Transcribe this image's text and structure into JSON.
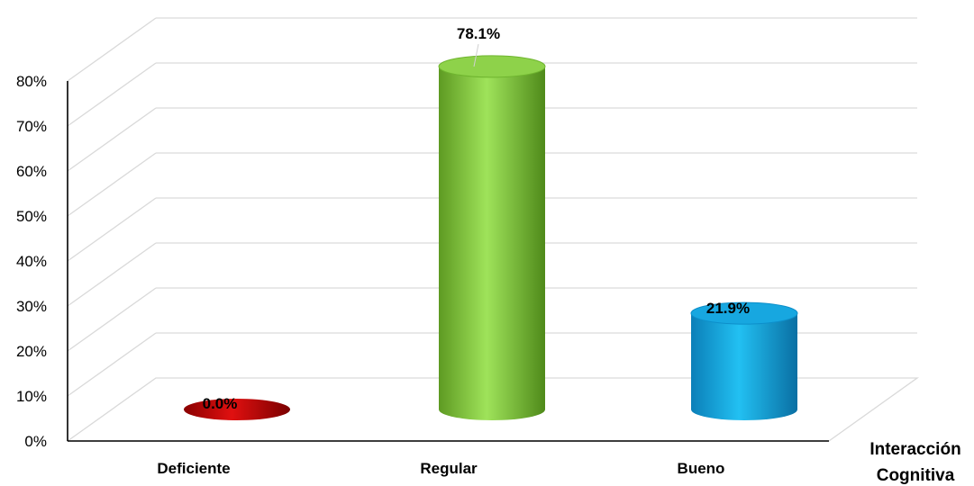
{
  "chart_data": {
    "type": "bar",
    "style": "3d-cylinder",
    "categories": [
      "Deficiente",
      "Regular",
      "Bueno"
    ],
    "values": [
      0.0,
      78.1,
      21.9
    ],
    "data_labels": [
      "0.0%",
      "78.1%",
      "21.9%"
    ],
    "colors": [
      "#c00000",
      "#8ed24a",
      "#17a7e0"
    ],
    "xlabel_lines": [
      "Interacción",
      "Cognitiva"
    ],
    "ylabel": "",
    "ylim": [
      0,
      80
    ],
    "yticks": [
      0,
      10,
      20,
      30,
      40,
      50,
      60,
      70,
      80
    ],
    "ytick_labels": [
      "0%",
      "10%",
      "20%",
      "30%",
      "40%",
      "50%",
      "60%",
      "70%",
      "80%"
    ],
    "grid": true,
    "legend": "none"
  }
}
